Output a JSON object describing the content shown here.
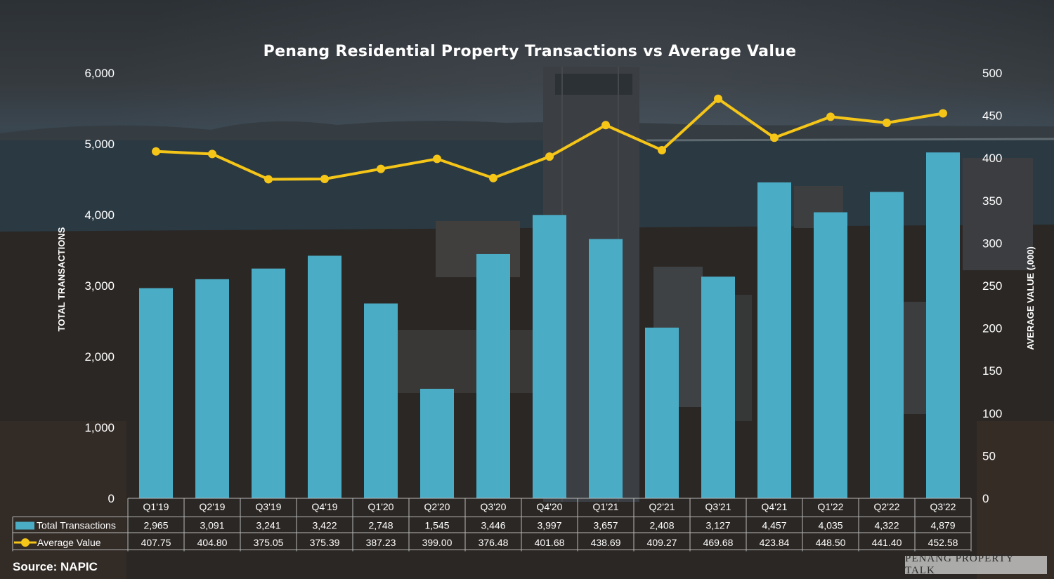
{
  "chart_data": {
    "type": "bar",
    "title": "Penang Residential Property Transactions vs Average Value",
    "categories": [
      "Q1'19",
      "Q2'19",
      "Q3'19",
      "Q4'19",
      "Q1'20",
      "Q2'20",
      "Q3'20",
      "Q4'20",
      "Q1'21",
      "Q2'21",
      "Q3'21",
      "Q4'21",
      "Q1'22",
      "Q2'22",
      "Q3'22"
    ],
    "series": [
      {
        "name": "Total Transactions",
        "type": "bar",
        "axis": "left",
        "color": "#4bacc6",
        "values": [
          2965,
          3091,
          3241,
          3422,
          2748,
          1545,
          3446,
          3997,
          3657,
          2408,
          3127,
          4457,
          4035,
          4322,
          4879
        ],
        "labels": [
          "2,965",
          "3,091",
          "3,241",
          "3,422",
          "2,748",
          "1,545",
          "3,446",
          "3,997",
          "3,657",
          "2,408",
          "3,127",
          "4,457",
          "4,035",
          "4,322",
          "4,879"
        ]
      },
      {
        "name": "Average Value",
        "type": "line",
        "axis": "right",
        "color": "#f5c518",
        "values": [
          407.75,
          404.8,
          375.05,
          375.39,
          387.23,
          399.0,
          376.48,
          401.68,
          438.69,
          409.27,
          469.68,
          423.84,
          448.5,
          441.4,
          452.58
        ],
        "labels": [
          "407.75",
          "404.80",
          "375.05",
          "375.39",
          "387.23",
          "399.00",
          "376.48",
          "401.68",
          "438.69",
          "409.27",
          "469.68",
          "423.84",
          "448.50",
          "441.40",
          "452.58"
        ]
      }
    ],
    "ylabel": "TOTAL TRANSACTIONS",
    "y2label": "AVERAGE VALUE (,000)",
    "ylim": [
      0,
      6000
    ],
    "y2lim": [
      0,
      500
    ],
    "yticks": [
      "0",
      "1,000",
      "2,000",
      "3,000",
      "4,000",
      "5,000",
      "6,000"
    ],
    "y2ticks": [
      "0",
      "50",
      "100",
      "150",
      "200",
      "250",
      "300",
      "350",
      "400",
      "450",
      "500"
    ],
    "legend": "data-table-below"
  },
  "source": "Source: NAPIC",
  "watermark": "Penang Property Talk"
}
